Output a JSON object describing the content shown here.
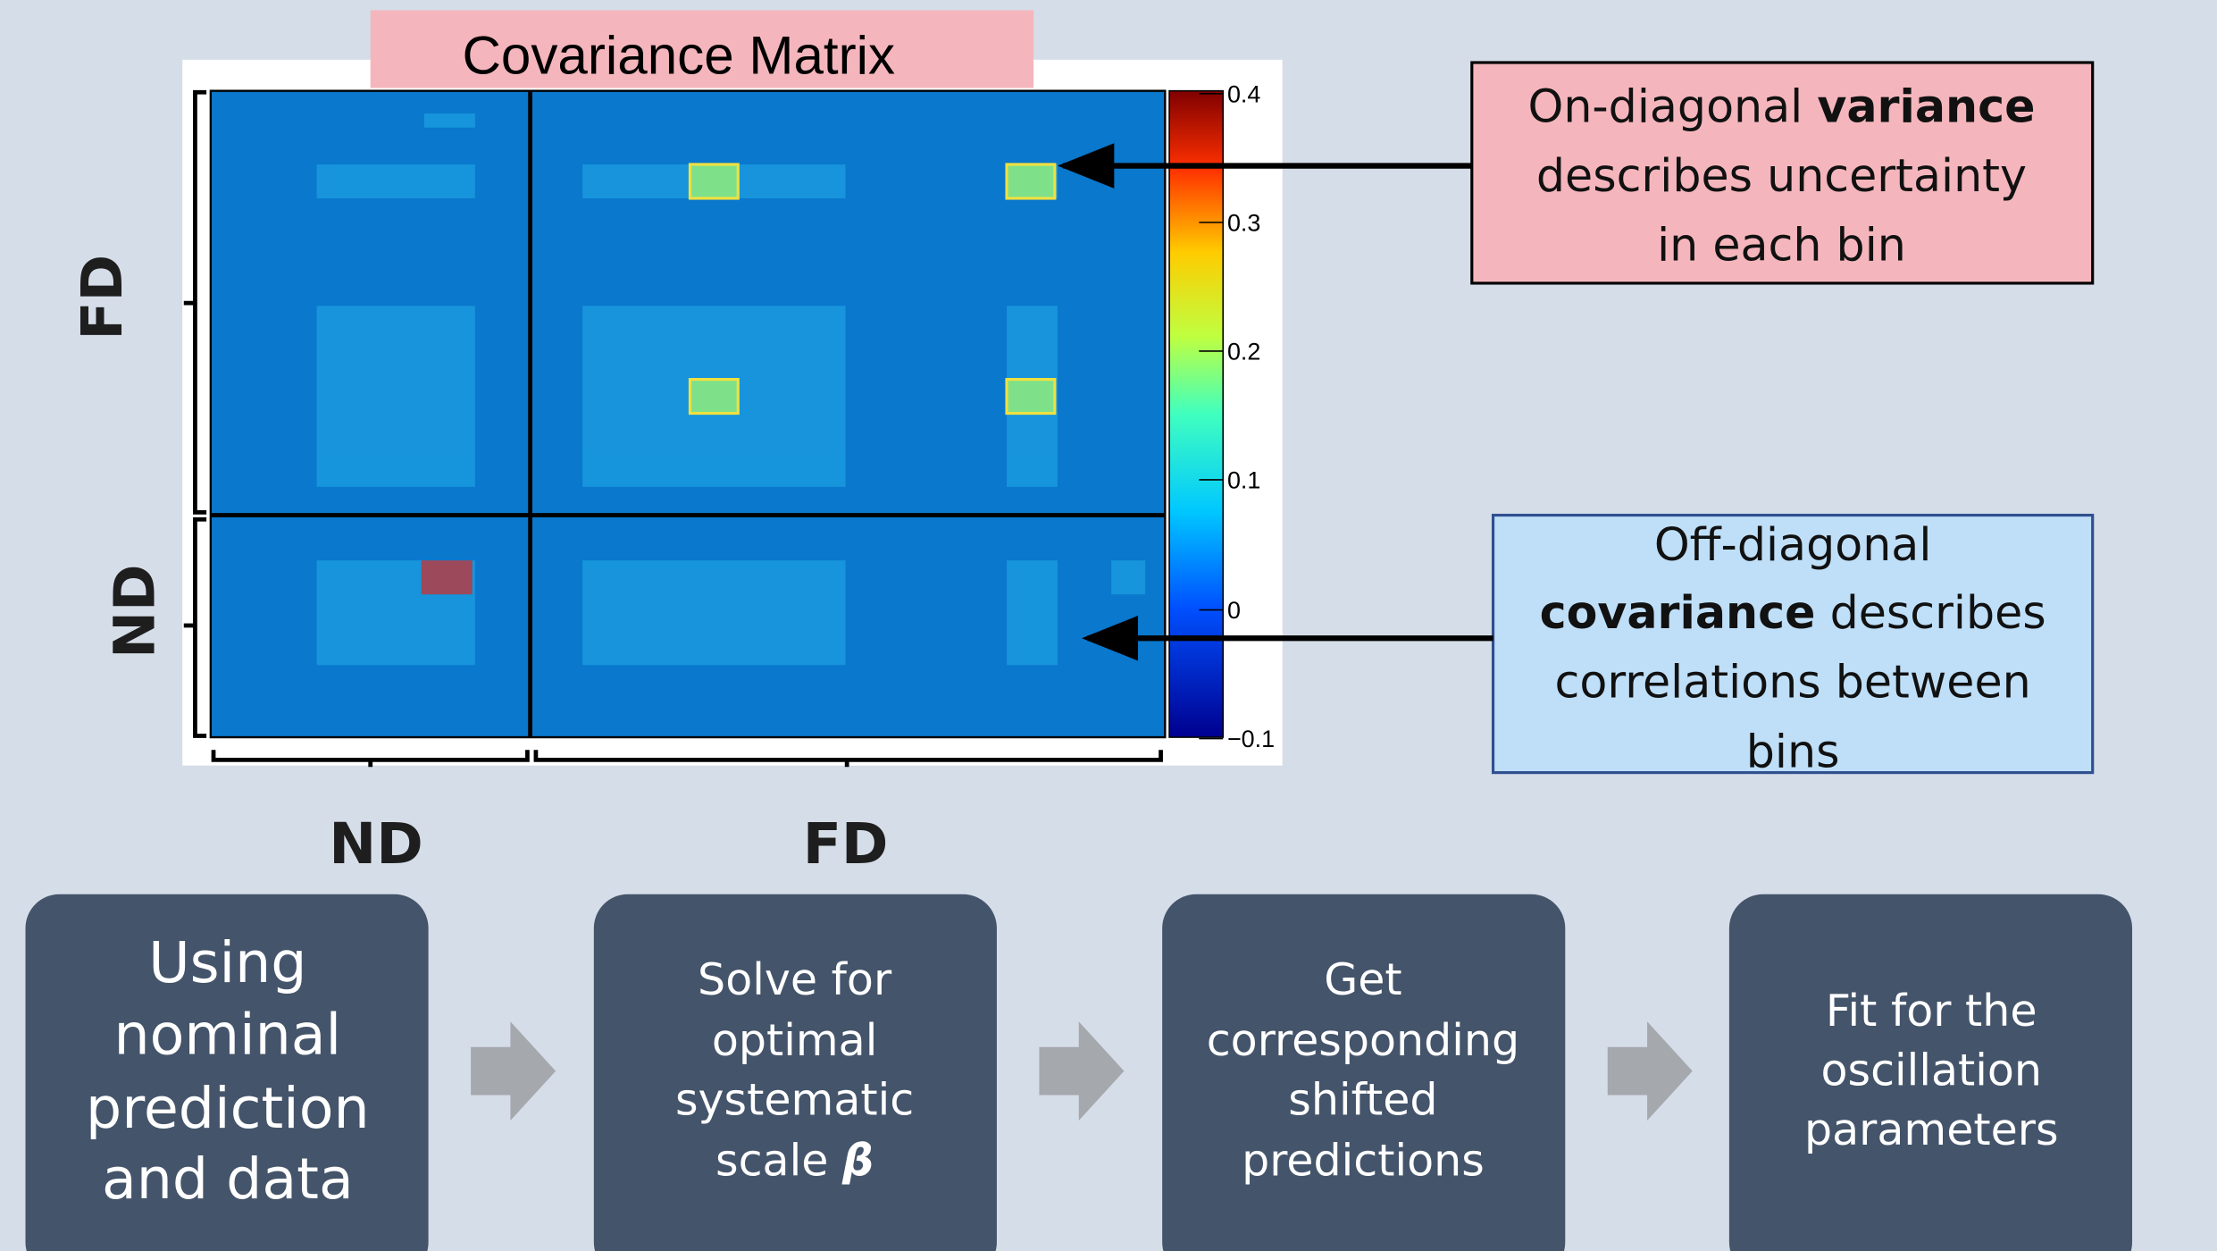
{
  "matrix": {
    "title": "Covariance Matrix",
    "colorbar_ticks": [
      "0.4",
      "0.3",
      "0.2",
      "0.1",
      "0",
      "−0.1"
    ],
    "row_labels": [
      "FD",
      "ND"
    ],
    "col_labels": [
      "ND",
      "FD"
    ]
  },
  "callouts": [
    {
      "lines": [
        [
          {
            "text": "On-diagonal "
          },
          {
            "text": "variance",
            "bold": true
          }
        ],
        [
          {
            "text": "describes uncertainty"
          }
        ],
        [
          {
            "text": "in each bin"
          }
        ]
      ]
    },
    {
      "lines": [
        [
          {
            "text": "Off-diagonal"
          }
        ],
        [
          {
            "text": "covariance",
            "bold": true
          },
          {
            "text": " describes"
          }
        ],
        [
          {
            "text": "correlations between"
          }
        ],
        [
          {
            "text": "bins"
          }
        ]
      ]
    }
  ],
  "steps": [
    {
      "lines": [
        [
          {
            "text": "Using"
          }
        ],
        [
          {
            "text": "nominal"
          }
        ],
        [
          {
            "text": "prediction"
          }
        ],
        [
          {
            "text": "and data"
          }
        ]
      ]
    },
    {
      "lines": [
        [
          {
            "text": "Solve for"
          }
        ],
        [
          {
            "text": "optimal"
          }
        ],
        [
          {
            "text": "systematic"
          }
        ],
        [
          {
            "text": "scale "
          },
          {
            "text": "β",
            "bold": true,
            "italic": true
          }
        ]
      ]
    },
    {
      "lines": [
        [
          {
            "text": "Get"
          }
        ],
        [
          {
            "text": "corresponding"
          }
        ],
        [
          {
            "text": "shifted"
          }
        ],
        [
          {
            "text": "predictions"
          }
        ]
      ]
    },
    {
      "lines": [
        [
          {
            "text": "Fit for the"
          }
        ],
        [
          {
            "text": "oscillation"
          }
        ],
        [
          {
            "text": "parameters"
          }
        ]
      ]
    }
  ]
}
